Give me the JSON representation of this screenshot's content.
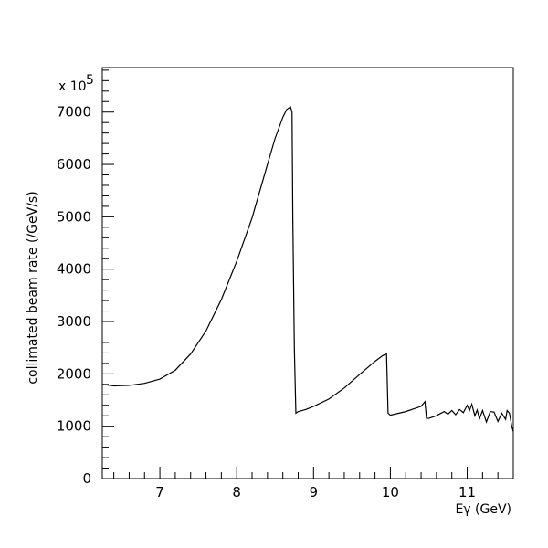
{
  "chart_data": {
    "type": "line",
    "title": "",
    "xlabel": "Eγ (GeV)",
    "ylabel": "collimated beam rate (/GeV/s)",
    "y_multiplier_label": "x 10",
    "y_multiplier_exponent": "5",
    "xlim": [
      6.25,
      11.6
    ],
    "ylim": [
      0,
      7850
    ],
    "x_ticks": [
      7,
      8,
      9,
      10,
      11
    ],
    "y_ticks": [
      0,
      1000,
      2000,
      3000,
      4000,
      5000,
      6000,
      7000
    ],
    "grid": false,
    "color": "#000000",
    "series": [
      {
        "x": [
          6.25,
          6.4,
          6.6,
          6.8,
          7.0,
          7.2,
          7.4,
          7.6,
          7.8,
          8.0,
          8.2,
          8.4,
          8.5,
          8.6,
          8.65,
          8.7,
          8.72,
          8.73,
          8.75,
          8.77,
          8.8,
          8.9,
          9.0,
          9.2,
          9.4,
          9.6,
          9.8,
          9.9,
          9.95,
          9.97,
          10.0,
          10.2,
          10.4,
          10.45,
          10.47,
          10.5,
          10.6,
          10.7,
          10.75,
          10.8,
          10.85,
          10.9,
          10.95,
          11.0,
          11.03,
          11.06,
          11.1,
          11.13,
          11.16,
          11.2,
          11.25,
          11.3,
          11.35,
          11.4,
          11.45,
          11.5,
          11.52,
          11.55,
          11.58,
          11.6
        ],
        "y": [
          1800,
          1770,
          1780,
          1820,
          1900,
          2070,
          2380,
          2820,
          3420,
          4150,
          4980,
          6000,
          6500,
          6900,
          7050,
          7100,
          7000,
          5000,
          2500,
          1250,
          1280,
          1320,
          1380,
          1520,
          1730,
          1990,
          2240,
          2350,
          2380,
          1250,
          1210,
          1280,
          1380,
          1470,
          1150,
          1150,
          1200,
          1280,
          1230,
          1300,
          1220,
          1320,
          1260,
          1400,
          1300,
          1420,
          1200,
          1310,
          1140,
          1300,
          1080,
          1280,
          1270,
          1090,
          1250,
          1130,
          1300,
          1250,
          1000,
          900
        ]
      }
    ]
  }
}
